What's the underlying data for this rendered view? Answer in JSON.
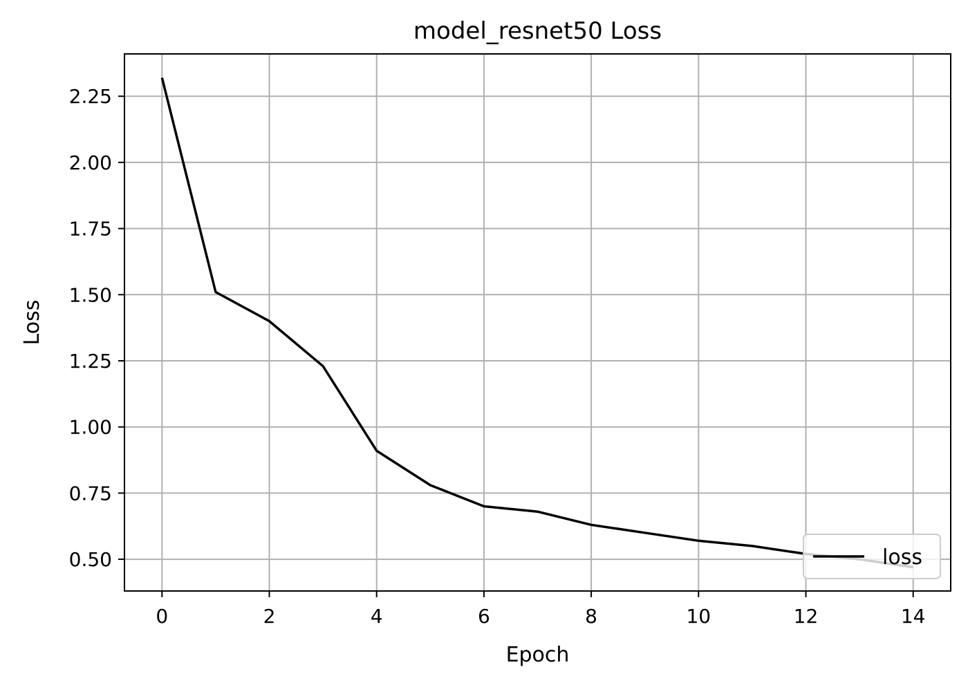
{
  "chart_data": {
    "type": "line",
    "title": "model_resnet50 Loss",
    "xlabel": "Epoch",
    "ylabel": "Loss",
    "xlim": [
      -0.7,
      14.7
    ],
    "ylim": [
      0.38,
      2.41
    ],
    "xticks": [
      0,
      2,
      4,
      6,
      8,
      10,
      12,
      14
    ],
    "yticks": [
      0.5,
      0.75,
      1.0,
      1.25,
      1.5,
      1.75,
      2.0,
      2.25
    ],
    "xtick_labels": [
      "0",
      "2",
      "4",
      "6",
      "8",
      "10",
      "12",
      "14"
    ],
    "ytick_labels": [
      "0.50",
      "0.75",
      "1.00",
      "1.25",
      "1.50",
      "1.75",
      "2.00",
      "2.25"
    ],
    "grid": true,
    "legend_position": "lower-right",
    "series": [
      {
        "name": "loss",
        "color": "#000000",
        "x": [
          0,
          1,
          2,
          3,
          4,
          5,
          6,
          7,
          8,
          9,
          10,
          11,
          12,
          13,
          14
        ],
        "y": [
          2.32,
          1.51,
          1.4,
          1.23,
          0.91,
          0.78,
          0.7,
          0.68,
          0.63,
          0.6,
          0.57,
          0.55,
          0.52,
          0.5,
          0.47
        ]
      }
    ]
  }
}
